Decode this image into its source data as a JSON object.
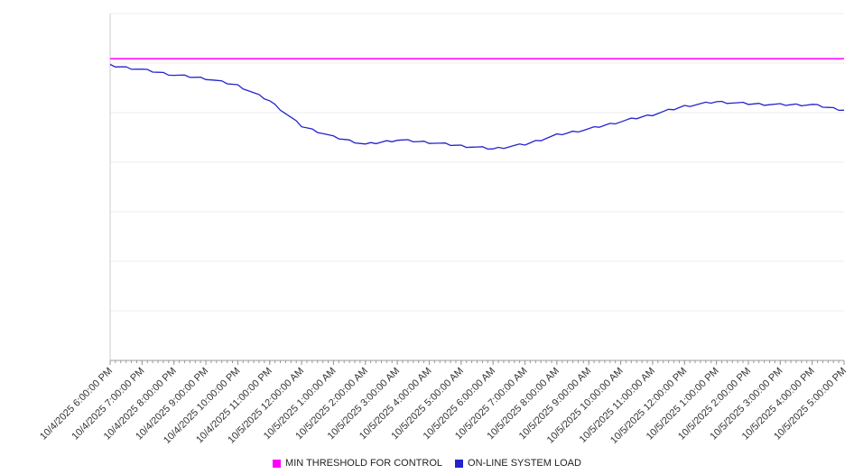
{
  "chart_data": {
    "type": "line",
    "title": "",
    "xlabel": "",
    "ylabel": "",
    "ylim": [
      0,
      700
    ],
    "grid": "horizontal",
    "legend_position": "bottom",
    "x_labels": [
      "10/4/2025 6:00:00 PM",
      "10/4/2025 7:00:00 PM",
      "10/4/2025 8:00:00 PM",
      "10/4/2025 9:00:00 PM",
      "10/4/2025 10:00:00 PM",
      "10/4/2025 11:00:00 PM",
      "10/5/2025 12:00:00 AM",
      "10/5/2025 1:00:00 AM",
      "10/5/2025 2:00:00 AM",
      "10/5/2025 3:00:00 AM",
      "10/5/2025 4:00:00 AM",
      "10/5/2025 5:00:00 AM",
      "10/5/2025 6:00:00 AM",
      "10/5/2025 7:00:00 AM",
      "10/5/2025 8:00:00 AM",
      "10/5/2025 9:00:00 AM",
      "10/5/2025 10:00:00 AM",
      "10/5/2025 11:00:00 AM",
      "10/5/2025 12:00:00 PM",
      "10/5/2025 1:00:00 PM",
      "10/5/2025 2:00:00 PM",
      "10/5/2025 3:00:00 PM",
      "10/5/2025 4:00:00 PM",
      "10/5/2025 5:00:00 PM"
    ],
    "series": [
      {
        "name": "MIN THRESHOLD FOR CONTROL",
        "color": "#ff00ff",
        "style": "constant",
        "values": [
          609,
          609,
          609,
          609,
          609,
          609,
          609,
          609,
          609,
          609,
          609,
          609,
          609,
          609,
          609,
          609,
          609,
          609,
          609,
          609,
          609,
          609,
          609,
          609
        ]
      },
      {
        "name": "ON-LINE SYSTEM LOAD",
        "color": "#2323cd",
        "style": "noisy",
        "values": [
          595,
          587,
          576,
          569,
          555,
          524,
          473,
          451,
          436,
          445,
          440,
          433,
          427,
          436,
          455,
          467,
          482,
          496,
          513,
          522,
          518,
          516,
          516,
          505
        ]
      }
    ]
  },
  "colors": {
    "grid": "#ececec",
    "axis_left": "#cccccc",
    "axis_bottom": "#999999",
    "tick": "#999999",
    "label_text": "#333333"
  }
}
